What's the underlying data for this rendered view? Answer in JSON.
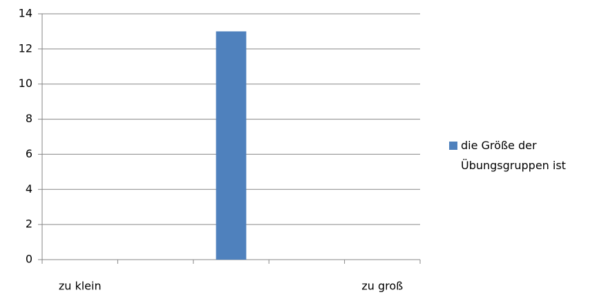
{
  "chart_data": {
    "type": "bar",
    "categories": [
      "zu klein",
      null,
      null,
      null,
      "zu groß"
    ],
    "series": [
      {
        "name": "die Größe der Übungsgruppen ist",
        "color": "#4f81bd",
        "values": [
          0,
          0,
          13,
          0,
          0
        ]
      }
    ],
    "ylim": [
      0,
      14
    ],
    "yticks": [
      0,
      2,
      4,
      6,
      8,
      10,
      12,
      14
    ],
    "grid": true,
    "legend": "right"
  }
}
